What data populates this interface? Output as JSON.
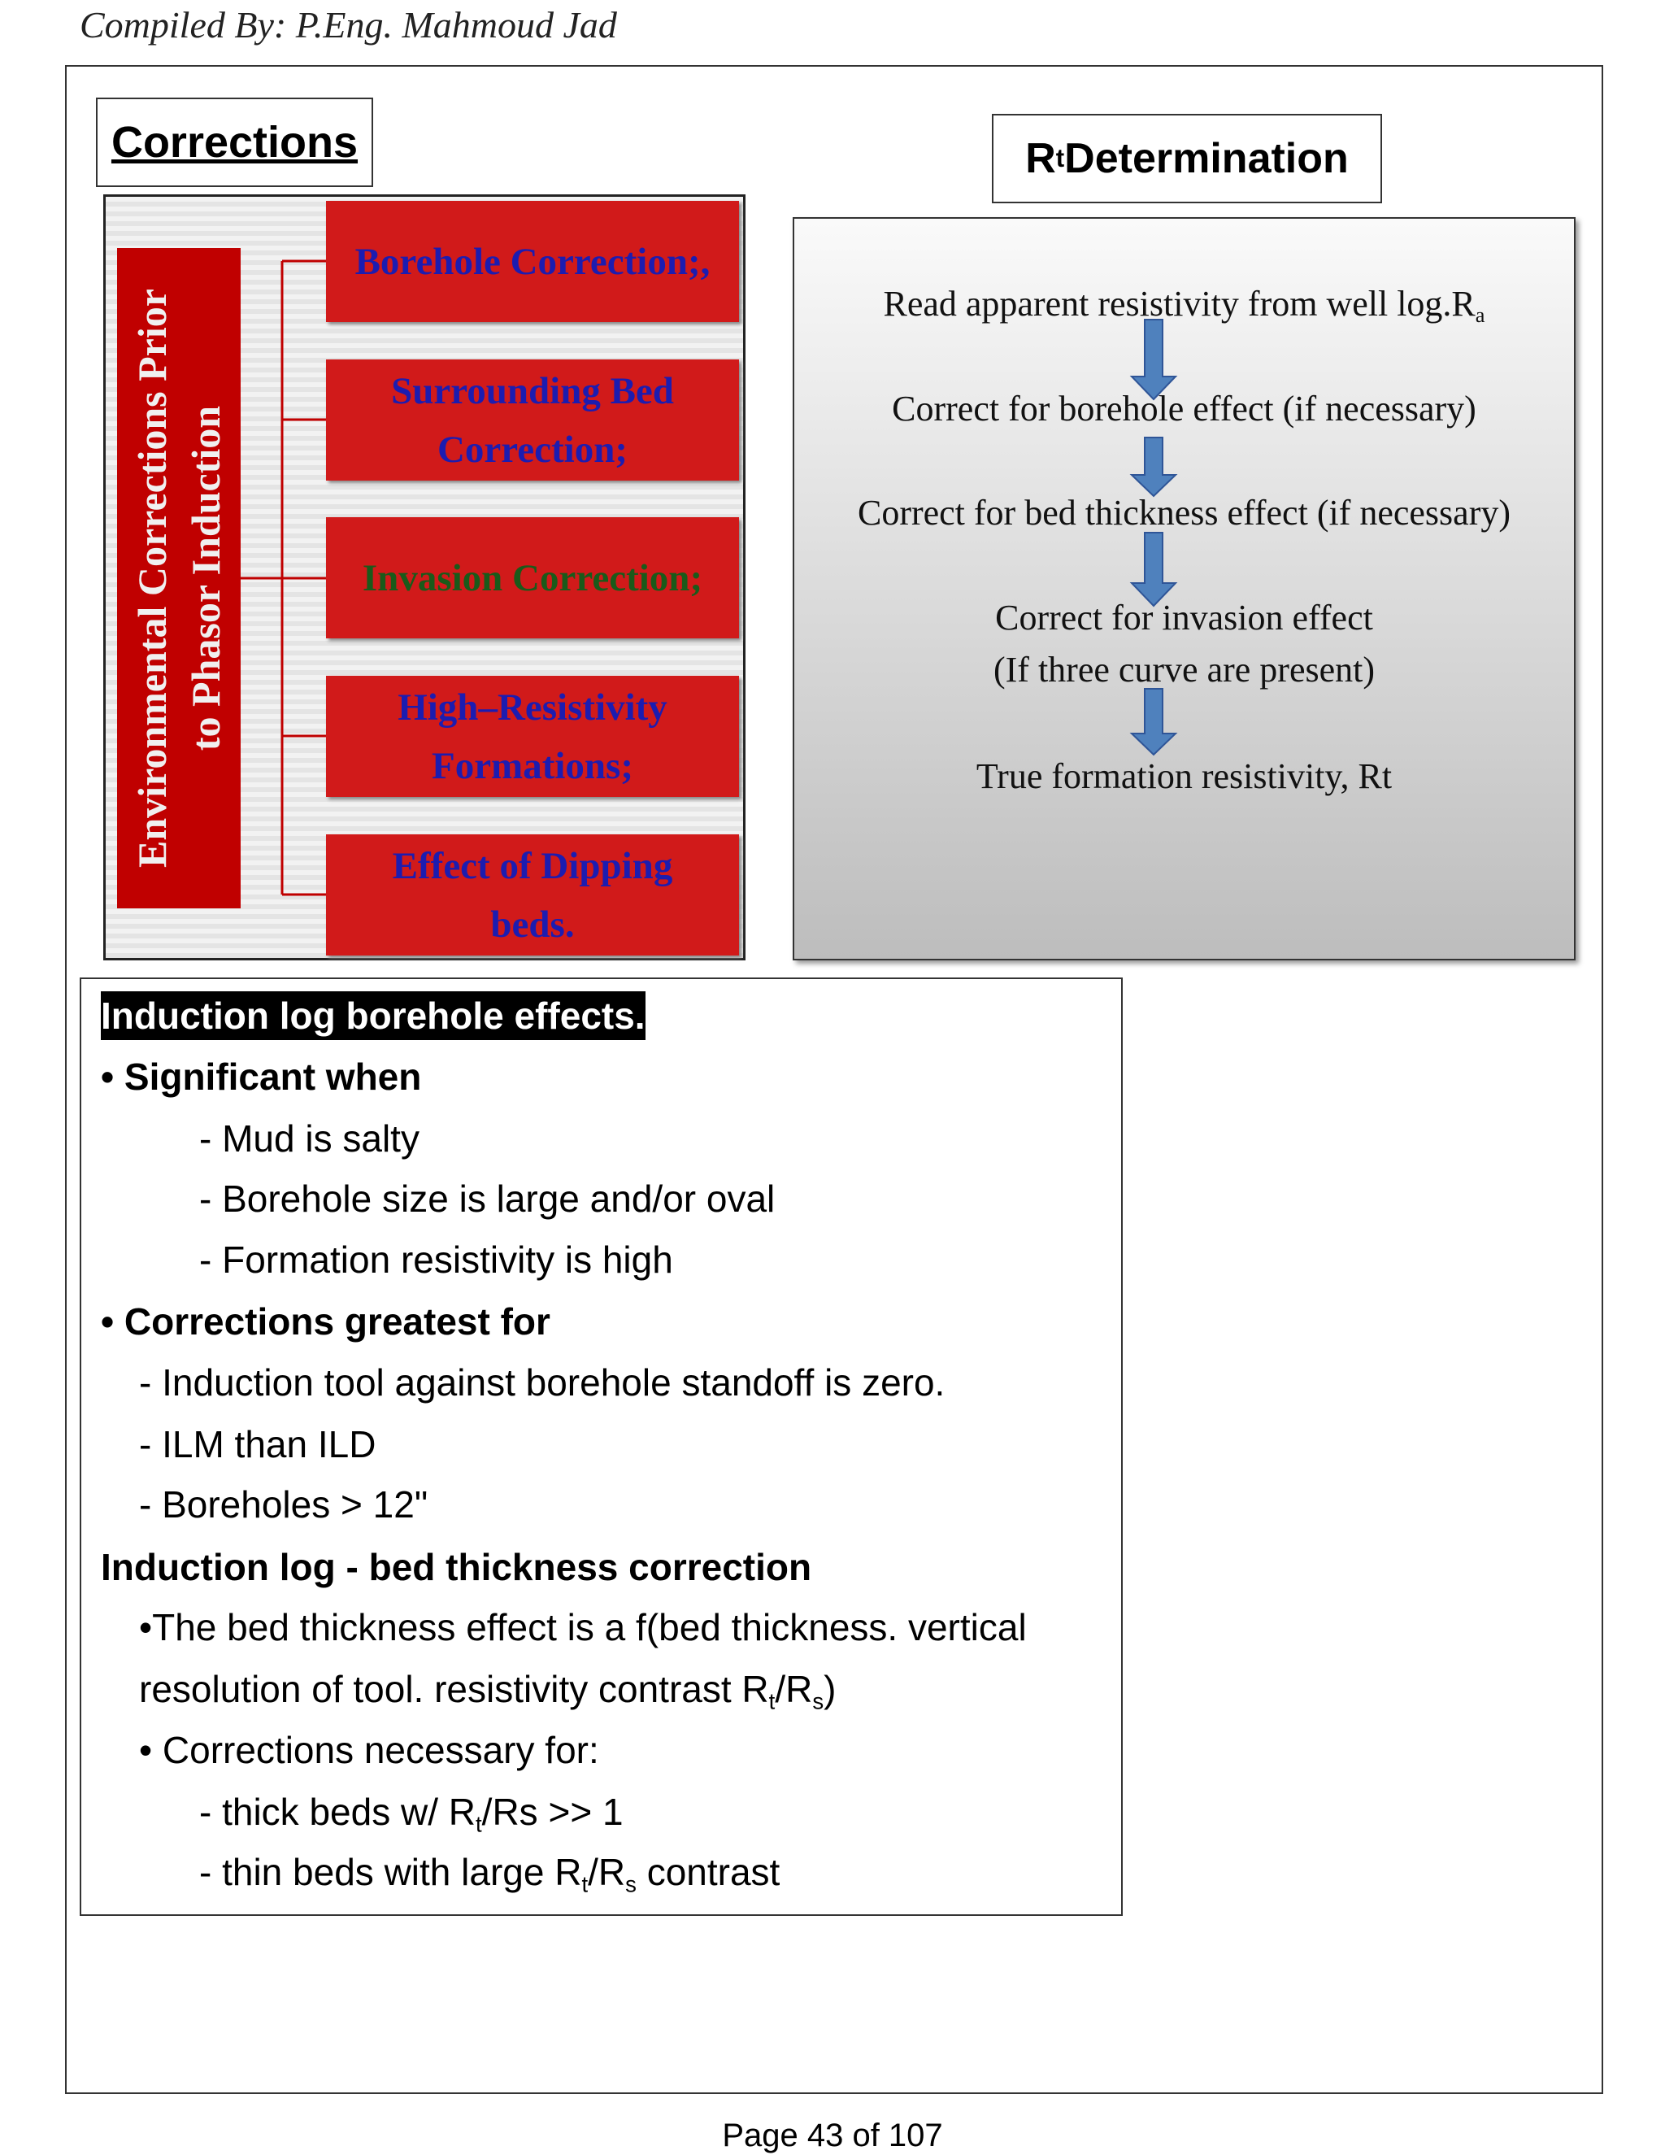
{
  "header": "Compiled By: P.Eng. Mahmoud Jad",
  "corrections": {
    "title": "Corrections",
    "side_label": [
      "Environmental Corrections Prior",
      "to Phasor Induction"
    ],
    "boxes": [
      [
        "Borehole Correction;,"
      ],
      [
        "Surrounding Bed",
        "Correction;"
      ],
      [
        "Invasion Correction;"
      ],
      [
        "High–Resistivity",
        "Formations;"
      ],
      [
        "Effect of Dipping",
        "beds."
      ]
    ]
  },
  "rt": {
    "title": [
      {
        "text": "R"
      },
      {
        "sub": "t"
      },
      {
        "text": " Determination"
      }
    ],
    "steps": [
      [
        [
          {
            "text": "Read apparent resistivity from well log.R"
          },
          {
            "sub": "a"
          }
        ]
      ],
      [
        [
          {
            "text": "Correct for borehole effect (if necessary)"
          }
        ]
      ],
      [
        [
          {
            "text": "Correct for bed thickness effect (if necessary)"
          }
        ]
      ],
      [
        [
          {
            "text": "Correct for invasion effect"
          }
        ],
        [
          {
            "text": "(If three curve are present)"
          }
        ]
      ],
      [
        [
          {
            "text": "True formation resistivity, Rt"
          }
        ]
      ]
    ]
  },
  "notes": [
    [
      {
        "text": "Induction log borehole effects."
      }
    ],
    [
      {
        "text": "• Significant when"
      }
    ],
    [
      {
        "text": "- Mud is salty"
      }
    ],
    [
      {
        "text": "- Borehole size is large and/or oval"
      }
    ],
    [
      {
        "text": "- Formation resistivity is high"
      }
    ],
    [
      {
        "text": "• Corrections greatest for"
      }
    ],
    [
      {
        "text": "- Induction tool against borehole standoff is zero."
      }
    ],
    [
      {
        "text": "- ILM than ILD"
      }
    ],
    [
      {
        "text": "- Boreholes > 12\""
      }
    ],
    [
      {
        "text": "Induction log - bed thickness correction"
      }
    ],
    [
      {
        "text": "•The bed thickness effect is a f(bed thickness. vertical"
      }
    ],
    [
      {
        "text": "resolution of tool. resistivity contrast R"
      },
      {
        "sub": "t"
      },
      {
        "text": "/R"
      },
      {
        "sub": "s"
      },
      {
        "text": ")"
      }
    ],
    [
      {
        "text": "• Corrections necessary for:"
      }
    ],
    [
      {
        "text": "- thick beds w/ R"
      },
      {
        "sub": "t"
      },
      {
        "text": "/Rs >> 1"
      }
    ],
    [
      {
        "text": "- thin beds with large R"
      },
      {
        "sub": "t"
      },
      {
        "text": "/R"
      },
      {
        "sub": "s"
      },
      {
        "text": " contrast"
      }
    ]
  ],
  "footer": "Page 43 of 107"
}
